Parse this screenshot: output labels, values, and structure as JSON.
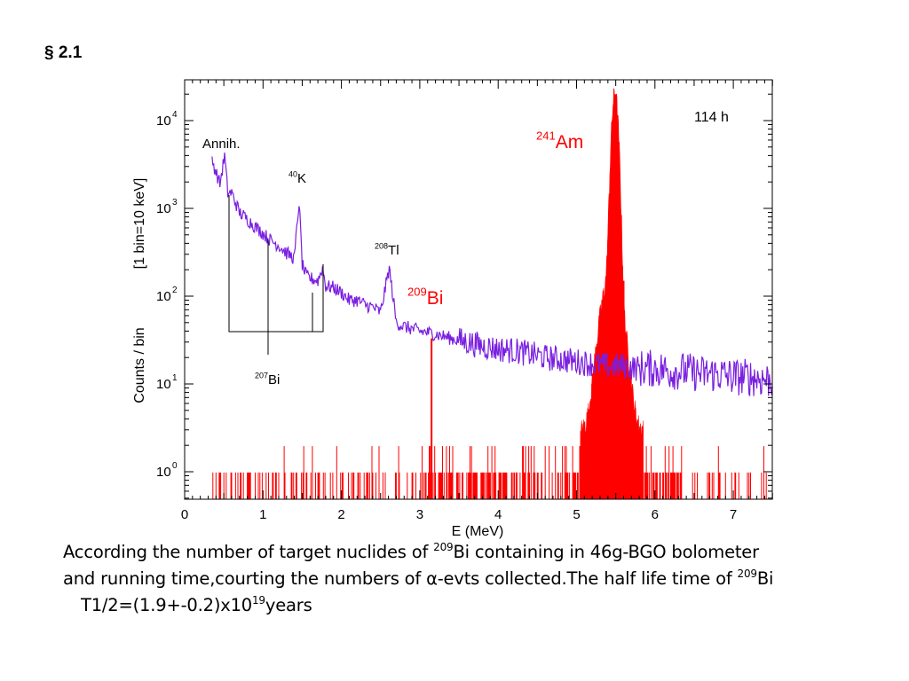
{
  "heading": "§ 2.1",
  "chart_data": {
    "type": "line",
    "title": "",
    "xlabel": "E (MeV)",
    "ylabel_inner": "Counts / bin",
    "ylabel_outer": "[1 bin=10 keV]",
    "xlim": [
      0,
      7.5
    ],
    "ylim_log10": [
      -0.3,
      4.5
    ],
    "log_y": true,
    "grid": false,
    "x_ticks": [
      "0",
      "1",
      "2",
      "3",
      "4",
      "5",
      "6",
      "7"
    ],
    "y_ticks": [
      {
        "base": "10",
        "exp": "0"
      },
      {
        "base": "10",
        "exp": "1"
      },
      {
        "base": "10",
        "exp": "2"
      },
      {
        "base": "10",
        "exp": "3"
      },
      {
        "base": "10",
        "exp": "4"
      }
    ],
    "runtime_label": "114 h",
    "colors": {
      "purple": "#7a1fe0",
      "red": "#ff0000",
      "axis": "#000000"
    },
    "series": [
      {
        "color": "#7a1fe0",
        "x": [
          0.35,
          0.4,
          0.45,
          0.51,
          0.55,
          0.6,
          0.7,
          0.8,
          0.9,
          1.0,
          1.1,
          1.2,
          1.3,
          1.4,
          1.46,
          1.5,
          1.55,
          1.6,
          1.7,
          1.76,
          1.8,
          1.9,
          2.0,
          2.1,
          2.2,
          2.3,
          2.4,
          2.5,
          2.61,
          2.7,
          2.8,
          3.0,
          3.2,
          3.4,
          3.6,
          3.8,
          4.0,
          4.2,
          4.4,
          4.6,
          4.8,
          5.0,
          5.2,
          5.4,
          5.6,
          5.8,
          6.0,
          6.2,
          6.4,
          6.6,
          6.8,
          7.0,
          7.2,
          7.5
        ],
        "y": [
          3500,
          2600,
          1900,
          4000,
          1500,
          1500,
          900,
          750,
          620,
          520,
          430,
          380,
          310,
          270,
          1200,
          230,
          170,
          160,
          150,
          210,
          130,
          125,
          110,
          90,
          90,
          80,
          75,
          65,
          210,
          50,
          45,
          40,
          37,
          33,
          30,
          27,
          25,
          24,
          22,
          20,
          19,
          18,
          17,
          16,
          16,
          15,
          15,
          14,
          14,
          13,
          13,
          12,
          12,
          11
        ]
      },
      {
        "color": "#ff0000",
        "x": [
          3.15,
          5.2,
          5.3,
          5.4,
          5.45,
          5.5,
          5.55,
          5.6,
          5.7
        ],
        "y": [
          33,
          10,
          40,
          300,
          6000,
          20000,
          2000,
          150,
          8
        ]
      }
    ],
    "annotations": [
      {
        "text": "Annih.",
        "x": 0.51
      },
      {
        "sup": "40",
        "text": "K",
        "x": 1.46
      },
      {
        "sup": "208",
        "text": "Tl",
        "x": 2.61
      },
      {
        "sup": "209",
        "text": "Bi",
        "x": 3.15
      },
      {
        "sup": "241",
        "text": "Am",
        "x": 5.5
      },
      {
        "sup": "207",
        "text": "Bi",
        "x": 1.06
      }
    ]
  },
  "caption": {
    "line1_a": "According the number of  target  nuclides of ",
    "line1_sup": "209",
    "line1_b": "Bi containing in 46g-BGO bolometer",
    "line2_a": "and running time,courting the numbers of α-evts collected.The half life time of ",
    "line2_sup": "209",
    "line2_b": "Bi",
    "line3_a": "T1/2=(1.9+-0.2)x10",
    "line3_sup": "19",
    "line3_b": "years"
  }
}
